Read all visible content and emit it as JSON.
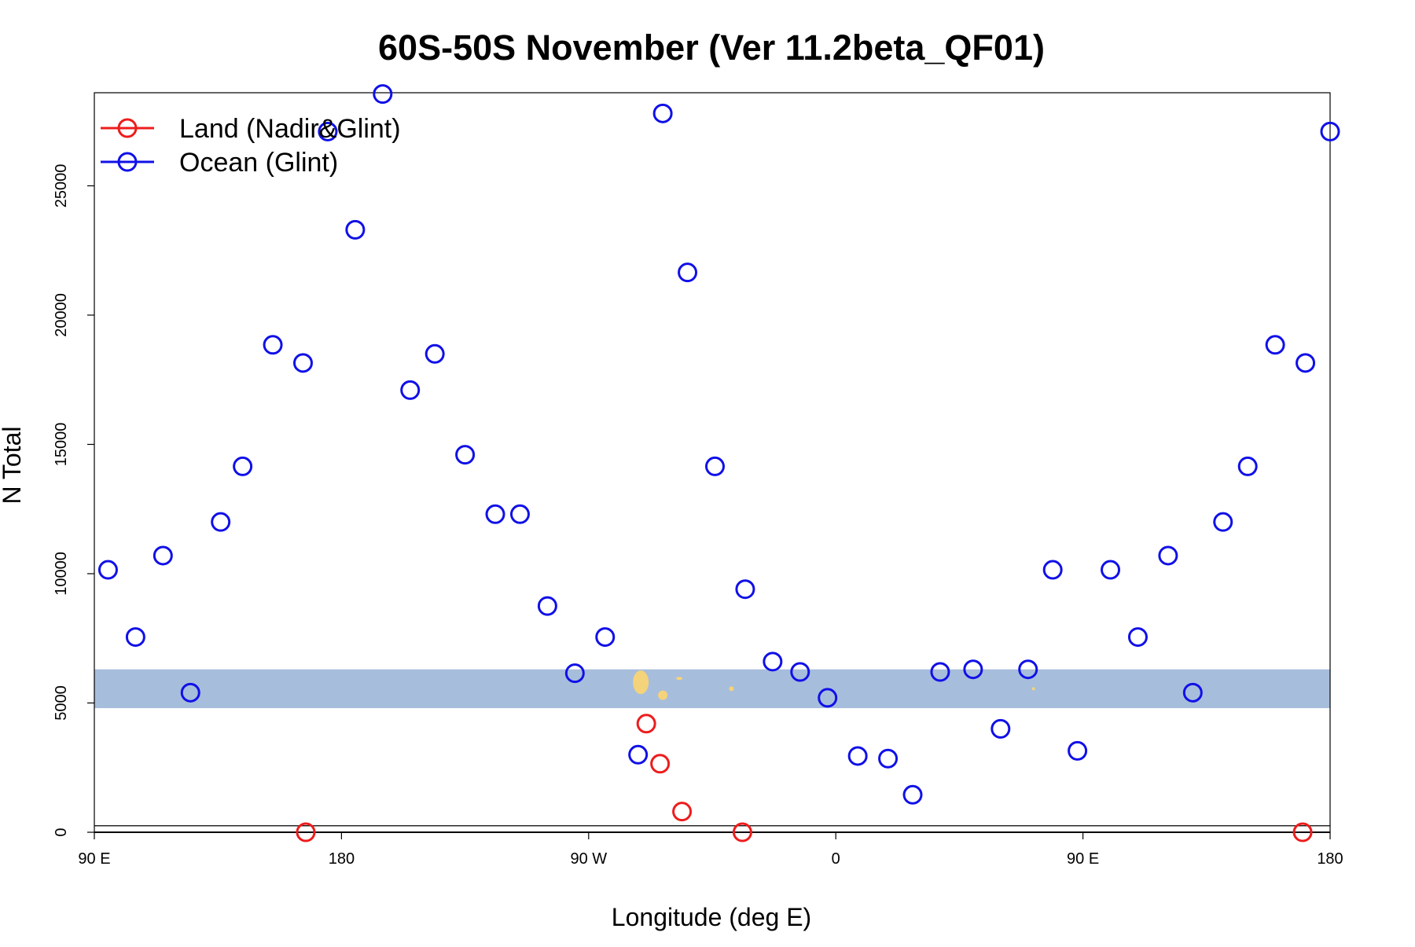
{
  "chart_data": {
    "type": "scatter",
    "title": "60S-50S November (Ver 11.2beta_QF01)",
    "xlabel": "Longitude (deg E)",
    "ylabel": "N Total",
    "x_unit": "degrees east, unwrapped; the axis spans 90 E through 180 and 0 to 180 again (90 to 540)",
    "xlim": [
      90,
      540
    ],
    "ylim": [
      0,
      28600
    ],
    "x_ticks": [
      {
        "value": 90,
        "label": "90 E"
      },
      {
        "value": 180,
        "label": "180"
      },
      {
        "value": 270,
        "label": "90 W"
      },
      {
        "value": 360,
        "label": "0"
      },
      {
        "value": 450,
        "label": "90 E"
      },
      {
        "value": 540,
        "label": "180"
      }
    ],
    "y_ticks": [
      {
        "value": 0,
        "label": "0"
      },
      {
        "value": 5000,
        "label": "5000"
      },
      {
        "value": 10000,
        "label": "10000"
      },
      {
        "value": 15000,
        "label": "15000"
      },
      {
        "value": 20000,
        "label": "20000"
      },
      {
        "value": 25000,
        "label": "25000"
      }
    ],
    "grid": false,
    "legend_position": "top-left",
    "reference_lines": [
      0,
      250
    ],
    "inset_map_band": {
      "ymin": 4800,
      "ymax": 6300,
      "ocean_color": "#a7bddc",
      "land_color": "#f5d37a"
    },
    "series": [
      {
        "name": "Land (Nadir&Glint)",
        "color": "#ee1c1c",
        "points": [
          [
            167,
            0
          ],
          [
            291,
            4200
          ],
          [
            296,
            2650
          ],
          [
            304,
            800
          ],
          [
            326,
            0
          ],
          [
            530,
            0
          ]
        ]
      },
      {
        "name": "Ocean (Glint)",
        "color": "#1010e8",
        "points": [
          [
            95,
            10150
          ],
          [
            105,
            7550
          ],
          [
            115,
            10700
          ],
          [
            125,
            5400
          ],
          [
            136,
            12000
          ],
          [
            144,
            14150
          ],
          [
            155,
            18850
          ],
          [
            166,
            18150
          ],
          [
            175,
            27100
          ],
          [
            185,
            23300
          ],
          [
            195,
            28550
          ],
          [
            205,
            17100
          ],
          [
            214,
            18500
          ],
          [
            225,
            14600
          ],
          [
            236,
            12300
          ],
          [
            245,
            12300
          ],
          [
            255,
            8750
          ],
          [
            265,
            6150
          ],
          [
            276,
            7550
          ],
          [
            288,
            3000
          ],
          [
            297,
            27800
          ],
          [
            306,
            21650
          ],
          [
            316,
            14150
          ],
          [
            327,
            9400
          ],
          [
            337,
            6600
          ],
          [
            347,
            6200
          ],
          [
            357,
            5200
          ],
          [
            368,
            2950
          ],
          [
            379,
            2850
          ],
          [
            388,
            1450
          ],
          [
            398,
            6200
          ],
          [
            410,
            6300
          ],
          [
            420,
            4000
          ],
          [
            430,
            6300
          ],
          [
            439,
            10150
          ],
          [
            448,
            3150
          ],
          [
            460,
            10150
          ],
          [
            470,
            7550
          ],
          [
            481,
            10700
          ],
          [
            490,
            5400
          ],
          [
            501,
            12000
          ],
          [
            510,
            14150
          ],
          [
            520,
            18850
          ],
          [
            531,
            18150
          ],
          [
            540,
            27100
          ]
        ]
      }
    ]
  }
}
